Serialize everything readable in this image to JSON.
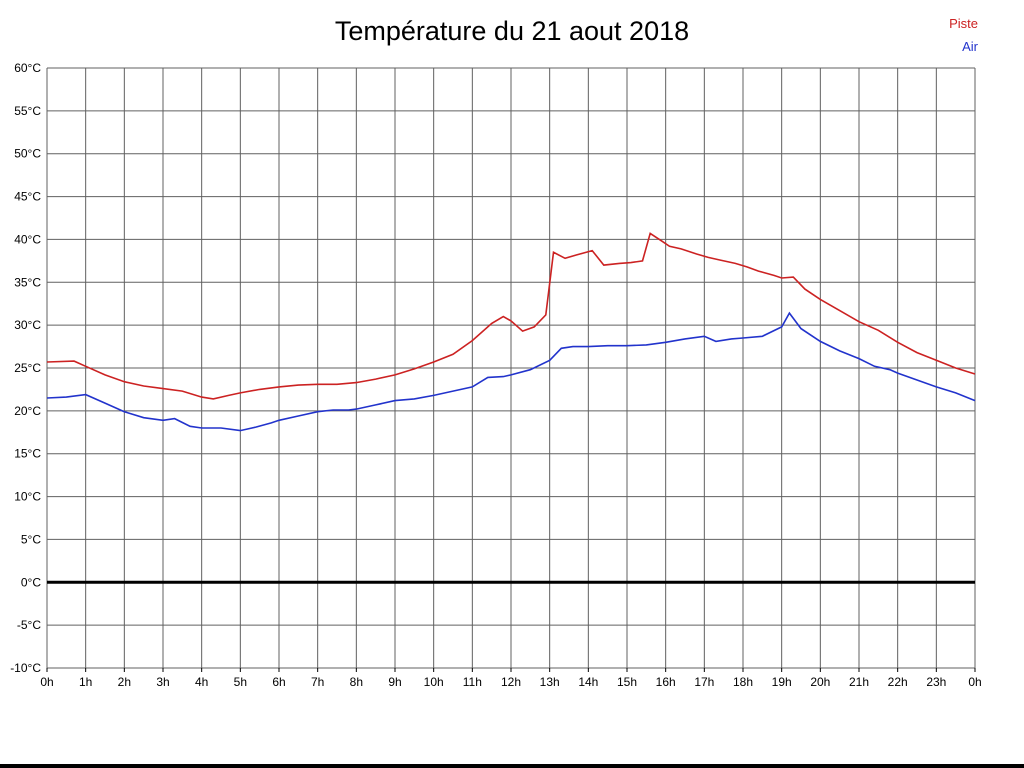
{
  "page": {
    "background": "#ffffff"
  },
  "legend_header": {
    "piste_label": "Piste",
    "air_label": "Air"
  },
  "chart_data": {
    "type": "line",
    "title": "Température du 21 aout 2018",
    "xlabel": "",
    "ylabel": "",
    "y_unit": "°C",
    "xlim": [
      0,
      24
    ],
    "ylim": [
      -10,
      60
    ],
    "grid": true,
    "grid_color": "#606060",
    "zero_line": {
      "value": 0,
      "color": "#000000",
      "width": 3
    },
    "y_ticks": [
      60,
      55,
      50,
      45,
      40,
      35,
      30,
      25,
      20,
      15,
      10,
      5,
      0,
      -5,
      -10
    ],
    "x_tick_labels": [
      "0h",
      "1h",
      "2h",
      "3h",
      "4h",
      "5h",
      "6h",
      "7h",
      "8h",
      "9h",
      "10h",
      "11h",
      "12h",
      "13h",
      "14h",
      "15h",
      "16h",
      "17h",
      "18h",
      "19h",
      "20h",
      "21h",
      "22h",
      "23h",
      "0h"
    ],
    "legend": [
      {
        "label": "Piste",
        "color": "#cc2222"
      },
      {
        "label": "Air",
        "color": "#2233cc"
      }
    ],
    "series": [
      {
        "name": "Piste",
        "color": "#cc2222",
        "points": [
          [
            0,
            25.7
          ],
          [
            0.7,
            25.8
          ],
          [
            1,
            25.2
          ],
          [
            1.5,
            24.2
          ],
          [
            2,
            23.4
          ],
          [
            2.5,
            22.9
          ],
          [
            3,
            22.6
          ],
          [
            3.5,
            22.3
          ],
          [
            4,
            21.6
          ],
          [
            4.3,
            21.4
          ],
          [
            4.7,
            21.8
          ],
          [
            5,
            22.1
          ],
          [
            5.5,
            22.5
          ],
          [
            6,
            22.8
          ],
          [
            6.5,
            23.0
          ],
          [
            7,
            23.1
          ],
          [
            7.5,
            23.1
          ],
          [
            8,
            23.3
          ],
          [
            8.5,
            23.7
          ],
          [
            9,
            24.2
          ],
          [
            9.5,
            24.9
          ],
          [
            10,
            25.7
          ],
          [
            10.5,
            26.6
          ],
          [
            11,
            28.2
          ],
          [
            11.5,
            30.2
          ],
          [
            11.8,
            31.0
          ],
          [
            12,
            30.5
          ],
          [
            12.3,
            29.3
          ],
          [
            12.6,
            29.8
          ],
          [
            12.9,
            31.2
          ],
          [
            13.1,
            38.5
          ],
          [
            13.4,
            37.8
          ],
          [
            13.7,
            38.2
          ],
          [
            14.1,
            38.7
          ],
          [
            14.4,
            37.0
          ],
          [
            14.8,
            37.2
          ],
          [
            15.1,
            37.3
          ],
          [
            15.4,
            37.5
          ],
          [
            15.6,
            40.7
          ],
          [
            15.9,
            39.8
          ],
          [
            16.1,
            39.2
          ],
          [
            16.4,
            38.9
          ],
          [
            16.8,
            38.3
          ],
          [
            17.1,
            37.9
          ],
          [
            17.4,
            37.6
          ],
          [
            17.8,
            37.2
          ],
          [
            18.1,
            36.8
          ],
          [
            18.4,
            36.3
          ],
          [
            18.8,
            35.8
          ],
          [
            19,
            35.5
          ],
          [
            19.3,
            35.6
          ],
          [
            19.6,
            34.2
          ],
          [
            20,
            33.0
          ],
          [
            20.5,
            31.7
          ],
          [
            21,
            30.4
          ],
          [
            21.5,
            29.4
          ],
          [
            22,
            28.0
          ],
          [
            22.5,
            26.8
          ],
          [
            23,
            25.9
          ],
          [
            23.5,
            25.0
          ],
          [
            24,
            24.3
          ]
        ]
      },
      {
        "name": "Air",
        "color": "#2233cc",
        "points": [
          [
            0,
            21.5
          ],
          [
            0.5,
            21.6
          ],
          [
            1,
            21.9
          ],
          [
            1.5,
            20.9
          ],
          [
            2,
            19.9
          ],
          [
            2.5,
            19.2
          ],
          [
            3,
            18.9
          ],
          [
            3.3,
            19.1
          ],
          [
            3.7,
            18.2
          ],
          [
            4,
            18.0
          ],
          [
            4.5,
            18.0
          ],
          [
            5,
            17.7
          ],
          [
            5.4,
            18.1
          ],
          [
            5.8,
            18.6
          ],
          [
            6,
            18.9
          ],
          [
            6.5,
            19.4
          ],
          [
            7,
            19.9
          ],
          [
            7.4,
            20.1
          ],
          [
            7.8,
            20.1
          ],
          [
            8,
            20.2
          ],
          [
            8.5,
            20.7
          ],
          [
            9,
            21.2
          ],
          [
            9.5,
            21.4
          ],
          [
            10,
            21.8
          ],
          [
            10.5,
            22.3
          ],
          [
            11,
            22.8
          ],
          [
            11.4,
            23.9
          ],
          [
            11.8,
            24.0
          ],
          [
            12,
            24.2
          ],
          [
            12.5,
            24.8
          ],
          [
            13,
            25.9
          ],
          [
            13.3,
            27.3
          ],
          [
            13.6,
            27.5
          ],
          [
            14,
            27.5
          ],
          [
            14.5,
            27.6
          ],
          [
            15,
            27.6
          ],
          [
            15.5,
            27.7
          ],
          [
            16,
            28.0
          ],
          [
            16.5,
            28.4
          ],
          [
            17,
            28.7
          ],
          [
            17.3,
            28.1
          ],
          [
            17.7,
            28.4
          ],
          [
            18,
            28.5
          ],
          [
            18.5,
            28.7
          ],
          [
            19,
            29.8
          ],
          [
            19.2,
            31.4
          ],
          [
            19.5,
            29.6
          ],
          [
            20,
            28.1
          ],
          [
            20.5,
            27.0
          ],
          [
            21,
            26.1
          ],
          [
            21.4,
            25.2
          ],
          [
            21.8,
            24.8
          ],
          [
            22,
            24.4
          ],
          [
            22.5,
            23.6
          ],
          [
            23,
            22.8
          ],
          [
            23.5,
            22.1
          ],
          [
            24,
            21.2
          ]
        ]
      }
    ]
  }
}
